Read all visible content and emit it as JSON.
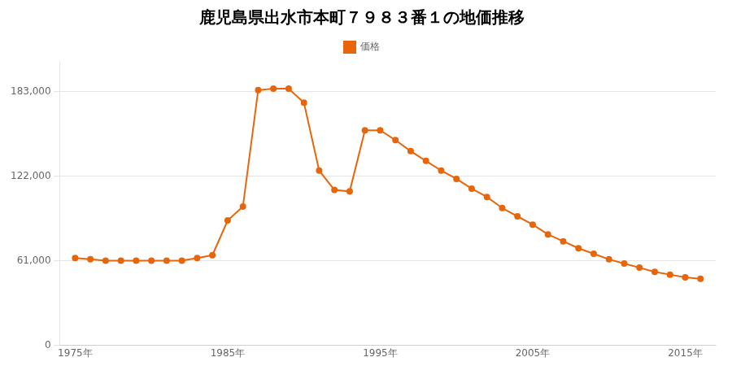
{
  "chart_data": {
    "type": "line",
    "title": "鹿児島県出水市本町７９８３番１の地価推移",
    "x": [
      1975,
      1976,
      1977,
      1978,
      1979,
      1980,
      1981,
      1982,
      1983,
      1984,
      1985,
      1986,
      1987,
      1988,
      1989,
      1990,
      1991,
      1992,
      1993,
      1994,
      1995,
      1996,
      1997,
      1998,
      1999,
      2000,
      2001,
      2002,
      2003,
      2004,
      2005,
      2006,
      2007,
      2008,
      2009,
      2010,
      2011,
      2012,
      2013,
      2014,
      2015,
      2016
    ],
    "series": [
      {
        "name": "価格",
        "color": "#E8650A",
        "marker": "circle",
        "line_style": "solid",
        "values": [
          63000,
          62000,
          61000,
          61000,
          61000,
          61000,
          61000,
          61000,
          63000,
          65000,
          90000,
          100000,
          184000,
          185000,
          185000,
          175000,
          126000,
          112000,
          111000,
          155000,
          155000,
          148000,
          140000,
          133000,
          126000,
          120000,
          113000,
          107000,
          99000,
          93000,
          87000,
          80000,
          75000,
          70000,
          66000,
          62000,
          59000,
          56000,
          53000,
          51000,
          49000,
          48000
        ]
      }
    ],
    "xlim": [
      1974,
      2017
    ],
    "xticks": [
      {
        "value": 1975,
        "label": "1975年"
      },
      {
        "value": 1985,
        "label": "1985年"
      },
      {
        "value": 1995,
        "label": "1995年"
      },
      {
        "value": 2005,
        "label": "2005年"
      },
      {
        "value": 2015,
        "label": "2015年"
      }
    ],
    "ylim": [
      0,
      205000
    ],
    "yticks": [
      0,
      {
        "value": 61000,
        "label": "61,000"
      },
      {
        "value": 122000,
        "label": "122,000"
      },
      {
        "value": 183000,
        "label": "183,000"
      }
    ],
    "grid": "y",
    "legend": "top"
  }
}
